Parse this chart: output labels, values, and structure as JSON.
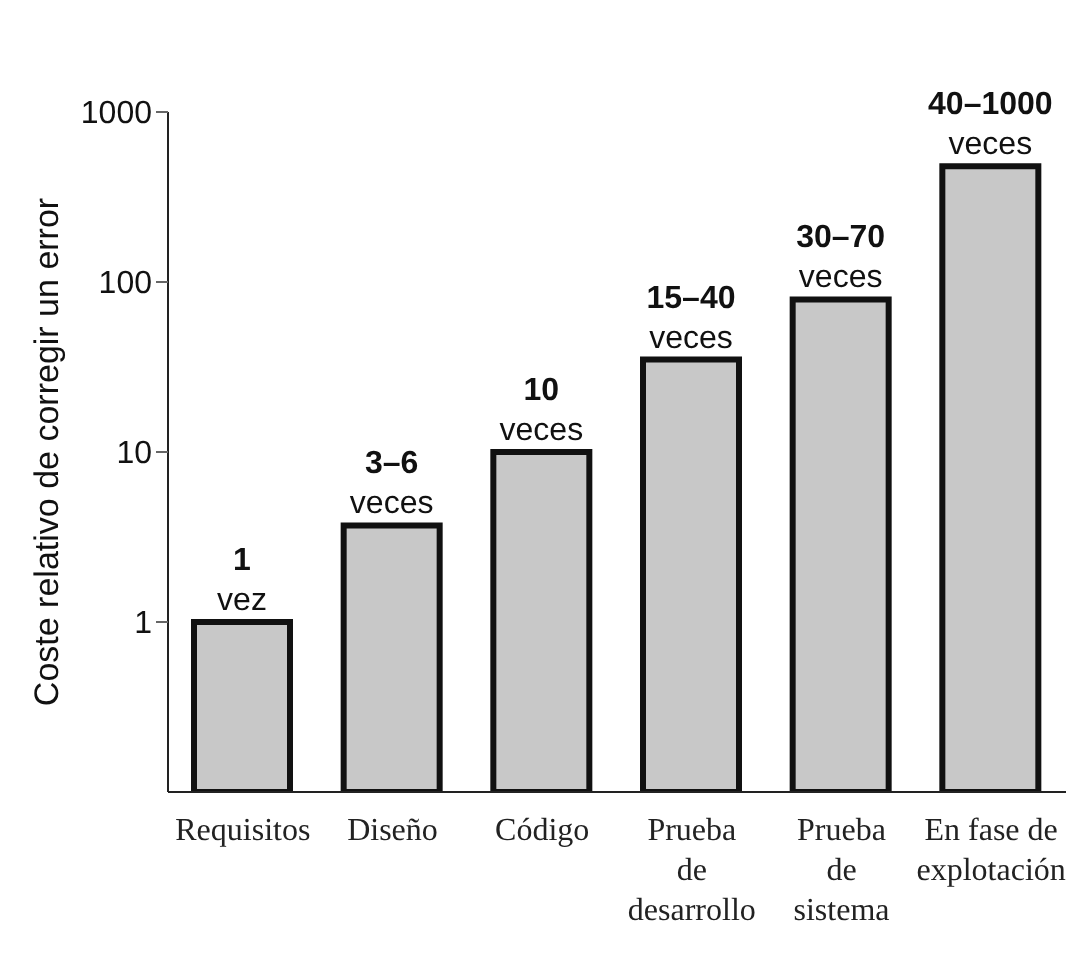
{
  "chart_data": {
    "type": "bar",
    "ylabel": "Coste relativo de corregir un error",
    "categories": [
      "Requisitos",
      "Diseño",
      "Código",
      "Prueba\nde\ndesarrollo",
      "Prueba\nde\nsistema",
      "En fase de\nexplotación"
    ],
    "values": [
      1,
      3.7,
      10,
      35,
      79,
      480
    ],
    "value_labels": [
      "1\nvez",
      "3–6\nveces",
      "10\nveces",
      "15–40\nveces",
      "30–70\nveces",
      "40–1000\nveces"
    ],
    "color": "#c8c8c8",
    "log": true,
    "ylim": [
      0.1,
      1000
    ],
    "yticks": [
      1,
      10,
      100,
      1000
    ]
  }
}
